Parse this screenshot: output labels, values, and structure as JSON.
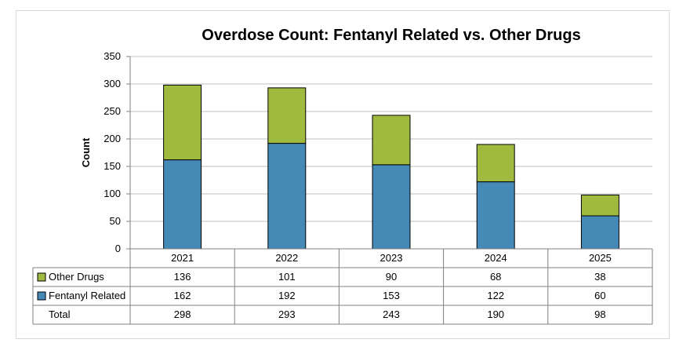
{
  "chart_data": {
    "type": "bar",
    "stacked": true,
    "title": "Overdose Count: Fentanyl Related vs. Other Drugs",
    "xlabel": "",
    "ylabel": "Count",
    "ylim": [
      0,
      350
    ],
    "yticks": [
      0,
      50,
      100,
      150,
      200,
      250,
      300,
      350
    ],
    "grid": true,
    "legend": "data-table-left",
    "categories": [
      "2021",
      "2022",
      "2023",
      "2024",
      "2025"
    ],
    "series": [
      {
        "name": "Fentanyl Related",
        "color": "#4589b7",
        "values": [
          162,
          192,
          153,
          122,
          60
        ]
      },
      {
        "name": "Other Drugs",
        "color": "#9fba3f",
        "values": [
          136,
          101,
          90,
          68,
          38
        ]
      }
    ],
    "table": {
      "rows": [
        {
          "label": "Other Drugs",
          "values": [
            "136",
            "101",
            "90",
            "68",
            "38"
          ]
        },
        {
          "label": "Fentanyl Related",
          "values": [
            "162",
            "192",
            "153",
            "122",
            "60"
          ]
        },
        {
          "label": "Total",
          "values": [
            "298",
            "293",
            "243",
            "190",
            "98"
          ]
        }
      ]
    }
  }
}
